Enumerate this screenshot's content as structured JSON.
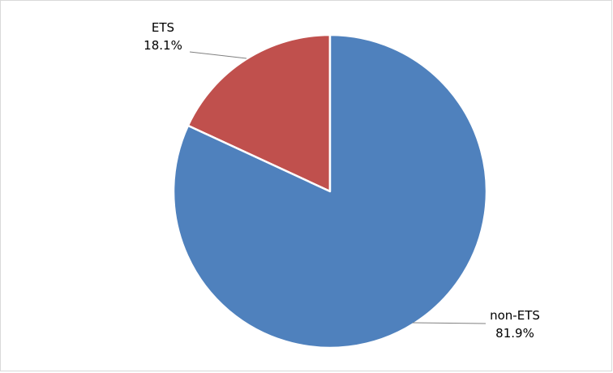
{
  "chart_data": {
    "type": "pie",
    "title": "",
    "slices": [
      {
        "name": "ETS",
        "value": 18.1,
        "label": "18.1%",
        "color": "#C0504D"
      },
      {
        "name": "non-ETS",
        "value": 81.9,
        "label": "81.9%",
        "color": "#4F81BD"
      }
    ],
    "start": "12 o'clock",
    "direction": "counter-clockwise for ETS, clockwise for non-ETS",
    "legend": "none",
    "data_labels": "outside with leader lines"
  }
}
